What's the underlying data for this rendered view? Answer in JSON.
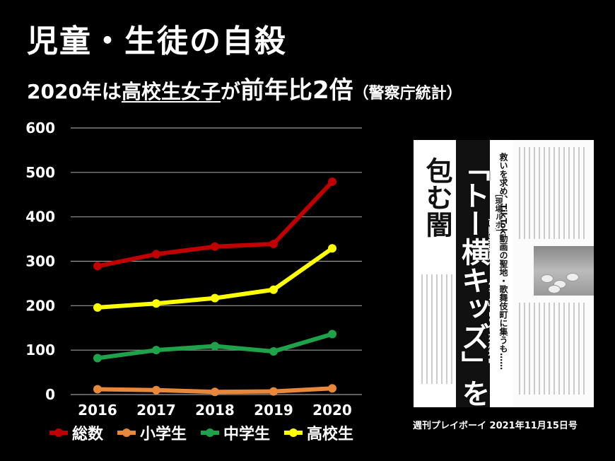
{
  "title": "児童・生徒の自殺",
  "subtitle": {
    "part1": "2020年は",
    "part2": "高校生女子",
    "part3": "が",
    "part4": "前年比2倍",
    "part5": "（警察庁統計）"
  },
  "chart_data": {
    "type": "line",
    "categories": [
      "2016",
      "2017",
      "2018",
      "2019",
      "2020"
    ],
    "ylim": [
      0,
      600
    ],
    "yticks": [
      "600",
      "500",
      "400",
      "300",
      "200",
      "100",
      "0"
    ],
    "grid": true,
    "legend_placement": "bottom",
    "series": [
      {
        "name": "総数",
        "color": "#c00000",
        "values": [
          289,
          316,
          333,
          339,
          479
        ]
      },
      {
        "name": "小学生",
        "color": "#e8883a",
        "values": [
          12,
          10,
          6,
          7,
          14
        ]
      },
      {
        "name": "中学生",
        "color": "#1ea34a",
        "values": [
          82,
          100,
          109,
          97,
          136
        ]
      },
      {
        "name": "高校生",
        "color": "#ffff00",
        "values": [
          196,
          205,
          217,
          236,
          329
        ]
      }
    ]
  },
  "magazine": {
    "headline": "「トー横キッズ」を",
    "headline2": "包む闇",
    "label": "［現場ルポ］",
    "sub1": "救いを求め、TikTok動画の聖地・歌舞伎町に集うも……",
    "sub2": "市販薬乱用で「バキる」10代が急増中",
    "caption": "週刊プレイボーイ 2021年11月15日号"
  }
}
